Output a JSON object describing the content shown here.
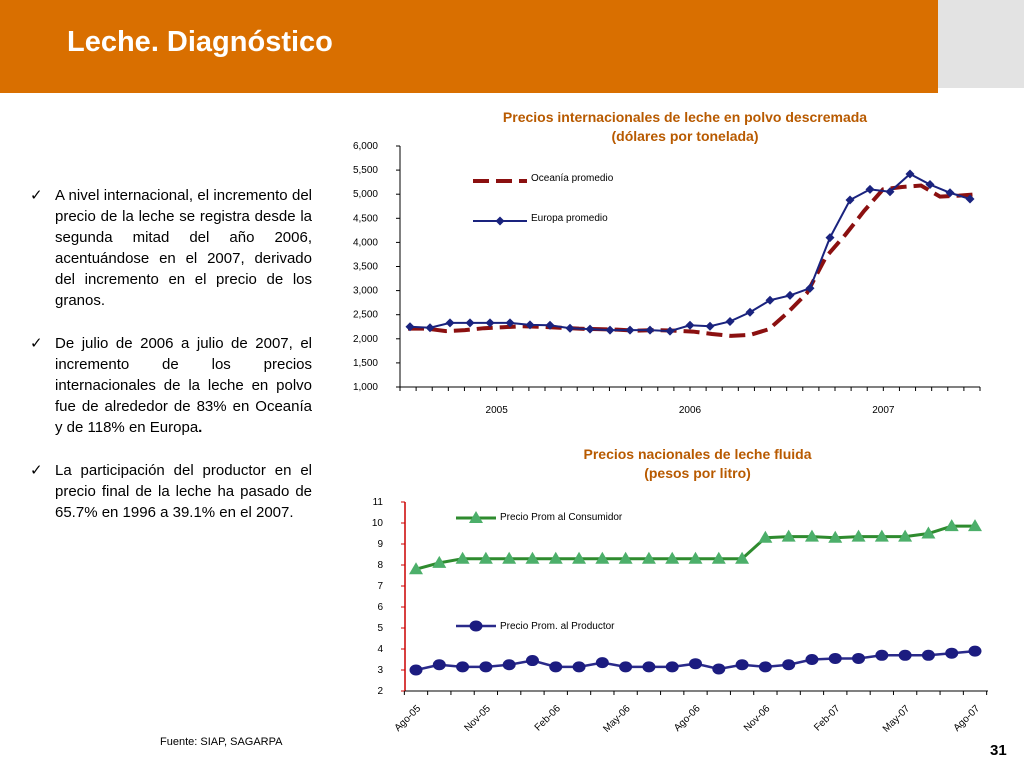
{
  "header": {
    "title": "Leche. Diagnóstico"
  },
  "bullets": [
    {
      "text": "A nivel internacional, el incremento del precio de la leche se registra desde la segunda mitad del año 2006, acentuándose en el 2007, derivado del incremento en el precio de los granos.",
      "bold_tail": ""
    },
    {
      "text": "De julio de 2006 a julio de 2007, el incremento de los precios internacionales de la leche en polvo fue de alrededor de 83% en Oceanía y de 118% en Europa",
      "bold_tail": "."
    },
    {
      "text": "La participación del productor en el precio final de la leche ha pasado de 65.7%  en 1996 a 39.1% en el 2007.",
      "bold_tail": ""
    }
  ],
  "footer": {
    "source": "Fuente:  SIAP, SAGARPA",
    "page_number": "31"
  },
  "colors": {
    "header_bg": "#d96f00",
    "title_text": "#b85a00",
    "oceania": "#8b1010",
    "europa": "#1a237e",
    "consumidor": "#2e8b2e",
    "productor": "#2a2a8a",
    "axis_red": "#cc0000"
  },
  "chart_data": [
    {
      "type": "line",
      "title": "Precios internacionales de leche en polvo descremada",
      "subtitle": "(dólares por tonelada)",
      "ylim": [
        1000,
        6000
      ],
      "yticks": [
        "1,000",
        "1,500",
        "2,000",
        "2,500",
        "3,000",
        "3,500",
        "4,000",
        "4,500",
        "5,000",
        "5,500",
        "6,000"
      ],
      "x_period_labels": [
        "2005",
        "2006",
        "2007"
      ],
      "points_per_year": 12,
      "legend": [
        "Oceanía promedio",
        "Europa promedio"
      ],
      "series": [
        {
          "name": "Oceanía promedio",
          "style": "dashed",
          "values": [
            2210,
            2210,
            2160,
            2180,
            2220,
            2240,
            2260,
            2250,
            2230,
            2210,
            2200,
            2190,
            2170,
            2180,
            2170,
            2150,
            2100,
            2060,
            2080,
            2200,
            2550,
            2950,
            3700,
            4150,
            4650,
            5100,
            5150,
            5180,
            4950,
            4970,
            5000
          ]
        },
        {
          "name": "Europa promedio",
          "style": "solid-diamond",
          "values": [
            2250,
            2230,
            2330,
            2330,
            2330,
            2330,
            2290,
            2280,
            2220,
            2200,
            2180,
            2180,
            2180,
            2160,
            2280,
            2260,
            2360,
            2550,
            2800,
            2900,
            3050,
            4100,
            4880,
            5100,
            5050,
            5420,
            5200,
            5030,
            4900
          ]
        }
      ]
    },
    {
      "type": "line",
      "title": "Precios nacionales de leche fluida",
      "subtitle": "(pesos por litro)",
      "ylim": [
        2,
        11
      ],
      "yticks": [
        "2",
        "3",
        "4",
        "5",
        "6",
        "7",
        "8",
        "9",
        "10",
        "11"
      ],
      "x_labels": [
        "Ago-05",
        "Nov-05",
        "Feb-06",
        "May-06",
        "Ago-06",
        "Nov-06",
        "Feb-07",
        "May-07",
        "Ago-07"
      ],
      "x_label_every": 3,
      "points": 25,
      "legend": [
        "Precio Prom al Consumidor",
        "Precio Prom. al Productor"
      ],
      "series": [
        {
          "name": "Precio Prom al Consumidor",
          "style": "triangle",
          "values": [
            7.8,
            8.1,
            8.3,
            8.3,
            8.3,
            8.3,
            8.3,
            8.3,
            8.3,
            8.3,
            8.3,
            8.3,
            8.3,
            8.3,
            8.3,
            9.3,
            9.35,
            9.35,
            9.3,
            9.35,
            9.35,
            9.35,
            9.5,
            9.85,
            9.85
          ]
        },
        {
          "name": "Precio Prom. al Productor",
          "style": "circle",
          "values": [
            3.0,
            3.25,
            3.15,
            3.15,
            3.25,
            3.45,
            3.15,
            3.15,
            3.35,
            3.15,
            3.15,
            3.15,
            3.3,
            3.05,
            3.25,
            3.15,
            3.25,
            3.5,
            3.55,
            3.55,
            3.7,
            3.7,
            3.7,
            3.8,
            3.9
          ]
        }
      ]
    }
  ]
}
